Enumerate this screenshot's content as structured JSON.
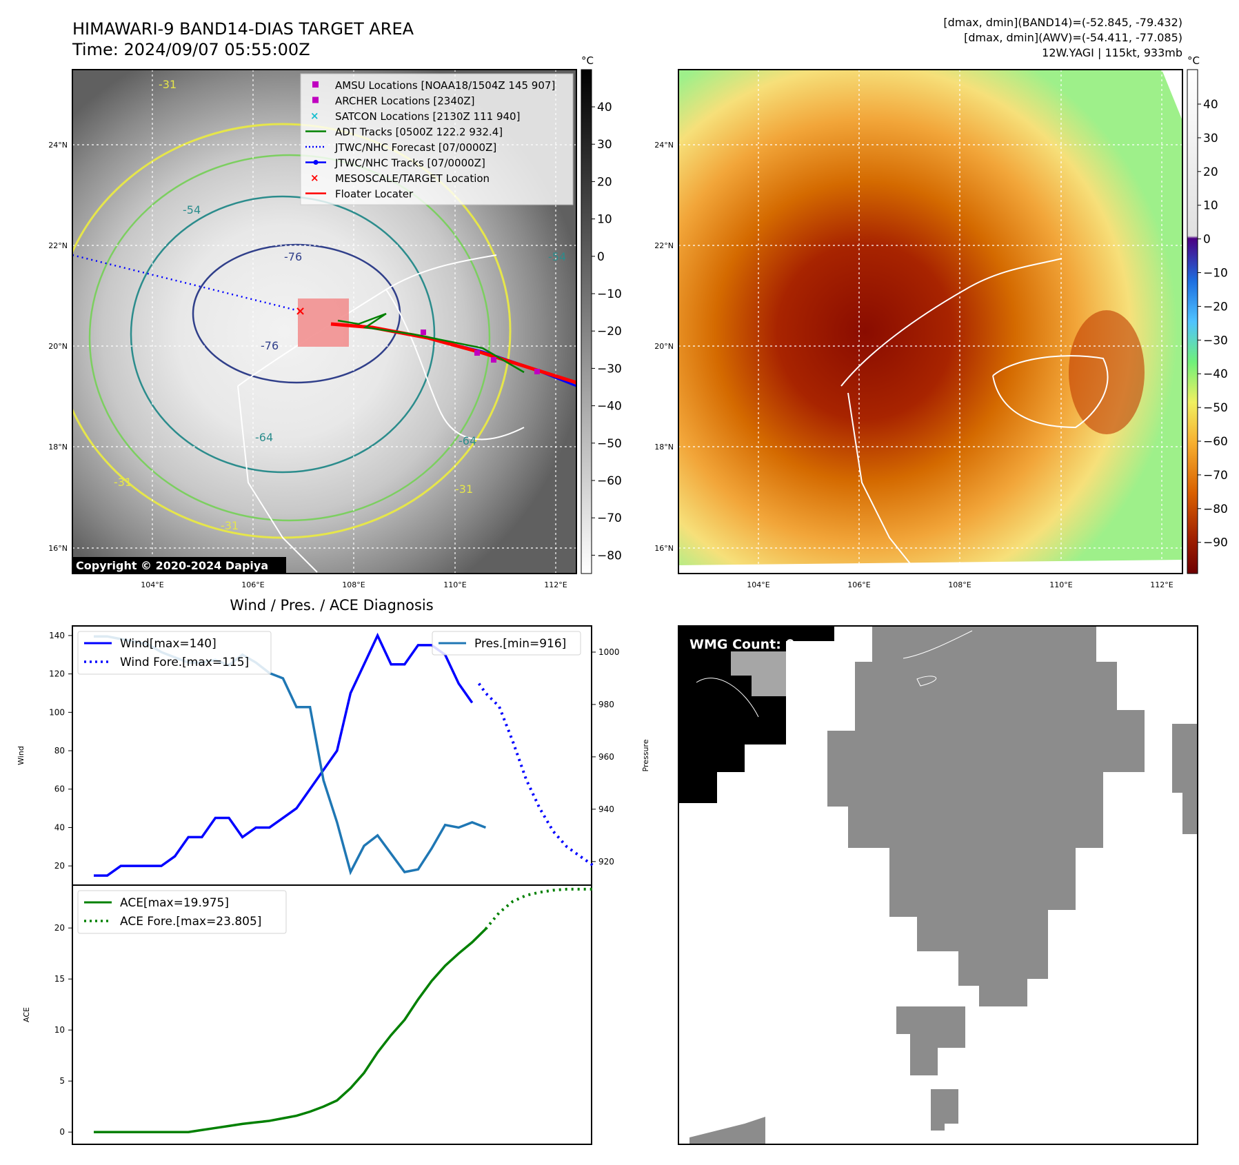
{
  "header": {
    "title_line1": "HIMAWARI-9 BAND14-DIAS TARGET AREA",
    "title_line2": "Time: 2024/09/07 05:55:00Z",
    "info_line1": "[dmax, dmin](BAND14)=(-52.845, -79.432)",
    "info_line2": "[dmax, dmin](AWV)=(-54.411, -77.085)",
    "info_line3": "12W.YAGI | 115kt, 933mb"
  },
  "map": {
    "lat_labels": [
      "24°N",
      "22°N",
      "20°N",
      "18°N",
      "16°N"
    ],
    "lon_labels": [
      "104°E",
      "106°E",
      "108°E",
      "110°E",
      "112°E"
    ],
    "contour_labels": [
      "-31",
      "-54",
      "-76",
      "-76",
      "-64",
      "-64",
      "-31",
      "-31",
      "-31",
      "-54"
    ],
    "copyright": "Copyright © 2020-2024 Dapiya",
    "unit": "°C",
    "gray_colorbar_ticks": [
      "40",
      "30",
      "20",
      "10",
      "0",
      "−10",
      "−20",
      "−30",
      "−40",
      "−50",
      "−60",
      "−70",
      "−80"
    ],
    "color_colorbar_ticks": [
      "40",
      "30",
      "20",
      "10",
      "0",
      "−10",
      "−20",
      "−30",
      "−40",
      "−50",
      "−60",
      "−70",
      "−80",
      "−90"
    ],
    "legend": [
      {
        "label": "AMSU Locations [NOAA18/1504Z 145 907]",
        "symbol": "square",
        "color": "#c000c0"
      },
      {
        "label": "ARCHER Locations [2340Z]",
        "symbol": "square",
        "color": "#c000c0"
      },
      {
        "label": "SATCON Locations [2130Z 111 940]",
        "symbol": "x",
        "color": "#17becf"
      },
      {
        "label": "ADT Tracks [0500Z 122.2 932.4]",
        "symbol": "line",
        "color": "#008000"
      },
      {
        "label": "JTWC/NHC Forecast [07/0000Z]",
        "symbol": "dotted",
        "color": "#0000ff"
      },
      {
        "label": "JTWC/NHC Tracks [07/0000Z]",
        "symbol": "line-dot",
        "color": "#0000ff"
      },
      {
        "label": "MESOSCALE/TARGET Location",
        "symbol": "x",
        "color": "#ff0000"
      },
      {
        "label": "Floater Locater",
        "symbol": "line",
        "color": "#ff0000"
      }
    ]
  },
  "diag": {
    "title": "Wind / Pres. / ACE Diagnosis",
    "wind_ylabel": "Wind",
    "pres_ylabel": "Pressure",
    "ace_ylabel": "ACE",
    "wind_legend": [
      "Wind[max=140]",
      "Wind Fore.[max=115]"
    ],
    "pres_legend": [
      "Pres.[min=916]"
    ],
    "ace_legend": [
      "ACE[max=19.975]",
      "ACE Fore.[max=23.805]"
    ],
    "wmg": "WMG Count: 0"
  },
  "colors": {
    "wind": "#0000ff",
    "pres": "#1f77b4",
    "ace": "#008000",
    "floater": "#ff0000"
  },
  "chart_data": [
    {
      "type": "line",
      "title": "Wind / Pres. / ACE Diagnosis",
      "ylabel": "Wind",
      "ylim": [
        10,
        145
      ],
      "yticks": [
        20,
        40,
        60,
        80,
        100,
        120,
        140
      ],
      "series": [
        {
          "name": "Wind[max=140]",
          "x": [
            0,
            1,
            2,
            3,
            4,
            5,
            6,
            7,
            8,
            9,
            10,
            11,
            12,
            13,
            14,
            15,
            16,
            17,
            18,
            19,
            20,
            21,
            22,
            23,
            24,
            25,
            26,
            27,
            28
          ],
          "values": [
            15,
            15,
            20,
            20,
            20,
            20,
            25,
            35,
            35,
            45,
            45,
            35,
            40,
            40,
            45,
            50,
            60,
            70,
            80,
            110,
            125,
            140,
            125,
            125,
            135,
            135,
            130,
            115,
            105
          ]
        },
        {
          "name": "Wind Fore.[max=115]",
          "style": "dotted",
          "x": [
            28.5,
            29,
            30,
            31,
            32,
            33,
            34,
            35,
            36,
            37
          ],
          "values": [
            115,
            110,
            103,
            85,
            65,
            50,
            38,
            30,
            25,
            20
          ]
        }
      ]
    },
    {
      "type": "line",
      "ylabel": "Pressure",
      "ylim": [
        911,
        1010
      ],
      "yticks": [
        920,
        940,
        960,
        980,
        1000
      ],
      "series": [
        {
          "name": "Pres.[min=916]",
          "x": [
            0,
            1,
            2,
            3,
            4,
            5,
            6,
            7,
            8,
            9,
            10,
            11,
            12,
            13,
            14,
            15,
            16,
            17,
            18,
            19,
            20,
            21,
            22,
            23,
            24,
            25,
            26,
            27,
            28,
            29
          ],
          "values": [
            1006,
            1006,
            1005,
            1004,
            1003,
            1000,
            998,
            996,
            996,
            997,
            995,
            999,
            996,
            992,
            990,
            979,
            979,
            951,
            935,
            916,
            926,
            930,
            923,
            916,
            917,
            925,
            934,
            933,
            935,
            933
          ]
        }
      ]
    },
    {
      "type": "line",
      "ylabel": "ACE",
      "ylim": [
        -1.2,
        24.2
      ],
      "yticks": [
        0,
        5,
        10,
        15,
        20
      ],
      "series": [
        {
          "name": "ACE[max=19.975]",
          "x": [
            0,
            1,
            2,
            3,
            4,
            5,
            6,
            7,
            8,
            9,
            10,
            11,
            12,
            13,
            14,
            15,
            16,
            17,
            18,
            19,
            20,
            21,
            22,
            23,
            24,
            25,
            26,
            27,
            28,
            29
          ],
          "values": [
            0,
            0,
            0,
            0,
            0,
            0,
            0,
            0,
            0.2,
            0.4,
            0.6,
            0.8,
            0.95,
            1.1,
            1.35,
            1.6,
            2.0,
            2.5,
            3.1,
            4.3,
            5.8,
            7.8,
            9.5,
            11,
            13,
            14.8,
            16.3,
            17.5,
            18.6,
            19.9
          ]
        },
        {
          "name": "ACE Fore.[max=23.805]",
          "style": "dotted",
          "x": [
            29,
            30,
            31,
            32,
            33,
            34,
            35,
            36,
            37
          ],
          "values": [
            19.9,
            21.5,
            22.6,
            23.2,
            23.5,
            23.7,
            23.8,
            23.8,
            23.805
          ]
        }
      ]
    }
  ]
}
